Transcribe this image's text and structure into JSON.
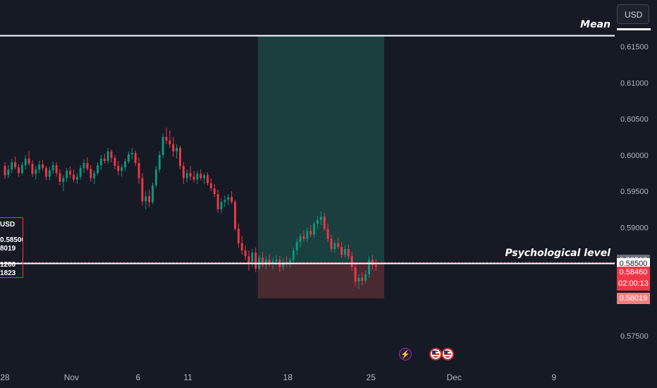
{
  "toolbar": {
    "currency": "USD"
  },
  "chart_data": {
    "type": "candlestick",
    "y_range": [
      0.5725,
      0.6175
    ],
    "y_ticks": [
      "0.61500",
      "0.61000",
      "0.60500",
      "0.60000",
      "0.59500",
      "0.59000",
      "0.58500",
      "0.58000",
      "0.57500"
    ],
    "x_ticks": [
      {
        "label": "28",
        "index": 0
      },
      {
        "label": "Nov",
        "index": 4
      },
      {
        "label": "6",
        "index": 8
      },
      {
        "label": "11",
        "index": 11
      },
      {
        "label": "18",
        "index": 17
      },
      {
        "label": "25",
        "index": 22
      },
      {
        "label": "Dec",
        "index": 27
      },
      {
        "label": "9",
        "index": 33
      }
    ],
    "candles_first_index": 0,
    "candles_last_index": 22.3,
    "candles": [
      [
        0.5985,
        0.599,
        0.5967,
        0.5972
      ],
      [
        0.5972,
        0.5986,
        0.5968,
        0.598
      ],
      [
        0.598,
        0.5995,
        0.5975,
        0.599
      ],
      [
        0.599,
        0.5998,
        0.598,
        0.5983
      ],
      [
        0.5983,
        0.5987,
        0.597,
        0.5975
      ],
      [
        0.5975,
        0.599,
        0.5972,
        0.5986
      ],
      [
        0.5986,
        0.6,
        0.598,
        0.5995
      ],
      [
        0.5995,
        0.6005,
        0.5985,
        0.5988
      ],
      [
        0.5988,
        0.5993,
        0.597,
        0.5974
      ],
      [
        0.5974,
        0.5985,
        0.5966,
        0.598
      ],
      [
        0.598,
        0.5992,
        0.5975,
        0.5987
      ],
      [
        0.5987,
        0.5993,
        0.5978,
        0.5982
      ],
      [
        0.5982,
        0.5985,
        0.5965,
        0.597
      ],
      [
        0.597,
        0.5984,
        0.5965,
        0.5979
      ],
      [
        0.5979,
        0.5991,
        0.5974,
        0.5986
      ],
      [
        0.5986,
        0.599,
        0.597,
        0.5975
      ],
      [
        0.5975,
        0.598,
        0.5958,
        0.5963
      ],
      [
        0.5963,
        0.5972,
        0.595,
        0.5968
      ],
      [
        0.5968,
        0.5982,
        0.5963,
        0.5978
      ],
      [
        0.5978,
        0.5984,
        0.5968,
        0.5973
      ],
      [
        0.5973,
        0.598,
        0.5962,
        0.5966
      ],
      [
        0.5966,
        0.5975,
        0.596,
        0.597
      ],
      [
        0.597,
        0.5986,
        0.5966,
        0.5982
      ],
      [
        0.5982,
        0.5994,
        0.5975,
        0.5989
      ],
      [
        0.5989,
        0.5997,
        0.5978,
        0.5981
      ],
      [
        0.5981,
        0.5986,
        0.5963,
        0.5968
      ],
      [
        0.5968,
        0.5979,
        0.596,
        0.5975
      ],
      [
        0.5975,
        0.599,
        0.5972,
        0.5986
      ],
      [
        0.5986,
        0.6,
        0.598,
        0.5995
      ],
      [
        0.5995,
        0.6002,
        0.5988,
        0.5992
      ],
      [
        0.5992,
        0.601,
        0.5988,
        0.6005
      ],
      [
        0.6005,
        0.6008,
        0.599,
        0.5996
      ],
      [
        0.5996,
        0.6,
        0.598,
        0.5985
      ],
      [
        0.5985,
        0.5992,
        0.5972,
        0.5978
      ],
      [
        0.5978,
        0.5987,
        0.597,
        0.5983
      ],
      [
        0.5983,
        0.5995,
        0.5978,
        0.5991
      ],
      [
        0.5991,
        0.6005,
        0.5988,
        0.6001
      ],
      [
        0.6001,
        0.601,
        0.5994,
        0.6003
      ],
      [
        0.6003,
        0.6006,
        0.5985,
        0.5989
      ],
      [
        0.5989,
        0.5996,
        0.596,
        0.5968
      ],
      [
        0.5968,
        0.5975,
        0.593,
        0.5936
      ],
      [
        0.5936,
        0.595,
        0.5925,
        0.5943
      ],
      [
        0.5943,
        0.5952,
        0.5928,
        0.5935
      ],
      [
        0.5935,
        0.5962,
        0.5932,
        0.5958
      ],
      [
        0.5958,
        0.5985,
        0.5955,
        0.598
      ],
      [
        0.598,
        0.6005,
        0.5976,
        0.6
      ],
      [
        0.6,
        0.603,
        0.5996,
        0.6025
      ],
      [
        0.6025,
        0.6038,
        0.6015,
        0.602
      ],
      [
        0.602,
        0.6034,
        0.601,
        0.6015
      ],
      [
        0.6015,
        0.6025,
        0.5998,
        0.6005
      ],
      [
        0.6005,
        0.6015,
        0.5995,
        0.601
      ],
      [
        0.601,
        0.6013,
        0.598,
        0.5985
      ],
      [
        0.5985,
        0.599,
        0.596,
        0.5968
      ],
      [
        0.5968,
        0.598,
        0.5962,
        0.5975
      ],
      [
        0.5975,
        0.5985,
        0.5965,
        0.597
      ],
      [
        0.597,
        0.5978,
        0.5962,
        0.5966
      ],
      [
        0.5966,
        0.5978,
        0.596,
        0.5974
      ],
      [
        0.5974,
        0.598,
        0.5965,
        0.5968
      ],
      [
        0.5968,
        0.5975,
        0.596,
        0.5972
      ],
      [
        0.5972,
        0.5976,
        0.5958,
        0.5961
      ],
      [
        0.5961,
        0.5968,
        0.595,
        0.5954
      ],
      [
        0.5954,
        0.596,
        0.5942,
        0.5946
      ],
      [
        0.5946,
        0.5952,
        0.592,
        0.5925
      ],
      [
        0.5925,
        0.594,
        0.592,
        0.5935
      ],
      [
        0.5935,
        0.5944,
        0.5928,
        0.5938
      ],
      [
        0.5938,
        0.5946,
        0.593,
        0.5942
      ],
      [
        0.5942,
        0.595,
        0.5932,
        0.5935
      ],
      [
        0.5935,
        0.5938,
        0.5895,
        0.5898
      ],
      [
        0.5898,
        0.5905,
        0.5872,
        0.5878
      ],
      [
        0.5878,
        0.5888,
        0.5862,
        0.5868
      ],
      [
        0.5868,
        0.5875,
        0.5855,
        0.586
      ],
      [
        0.586,
        0.5868,
        0.584,
        0.585
      ],
      [
        0.585,
        0.587,
        0.5845,
        0.5865
      ],
      [
        0.5865,
        0.5872,
        0.5838,
        0.5843
      ],
      [
        0.5843,
        0.5862,
        0.584,
        0.5858
      ],
      [
        0.5858,
        0.5866,
        0.5845,
        0.5848
      ],
      [
        0.5848,
        0.586,
        0.5842,
        0.5855
      ],
      [
        0.5855,
        0.5863,
        0.5846,
        0.585
      ],
      [
        0.585,
        0.5858,
        0.5842,
        0.5853
      ],
      [
        0.5853,
        0.5862,
        0.5848,
        0.5855
      ],
      [
        0.5855,
        0.586,
        0.5838,
        0.5845
      ],
      [
        0.5845,
        0.5858,
        0.584,
        0.5852
      ],
      [
        0.5852,
        0.586,
        0.5845,
        0.585
      ],
      [
        0.585,
        0.5858,
        0.5844,
        0.5855
      ],
      [
        0.5855,
        0.5872,
        0.585,
        0.5868
      ],
      [
        0.5868,
        0.5885,
        0.5862,
        0.588
      ],
      [
        0.588,
        0.5892,
        0.5872,
        0.5888
      ],
      [
        0.5888,
        0.5896,
        0.588,
        0.5884
      ],
      [
        0.5884,
        0.59,
        0.588,
        0.5895
      ],
      [
        0.5895,
        0.5903,
        0.5886,
        0.589
      ],
      [
        0.589,
        0.5908,
        0.5885,
        0.5905
      ],
      [
        0.5905,
        0.5916,
        0.5898,
        0.591
      ],
      [
        0.591,
        0.5922,
        0.5903,
        0.5915
      ],
      [
        0.5915,
        0.592,
        0.5895,
        0.5898
      ],
      [
        0.5898,
        0.5905,
        0.588,
        0.5884
      ],
      [
        0.5884,
        0.589,
        0.5866,
        0.587
      ],
      [
        0.587,
        0.5882,
        0.5865,
        0.5878
      ],
      [
        0.5878,
        0.5886,
        0.587,
        0.5873
      ],
      [
        0.5873,
        0.588,
        0.5858,
        0.5862
      ],
      [
        0.5862,
        0.5875,
        0.5858,
        0.587
      ],
      [
        0.587,
        0.5876,
        0.5856,
        0.586
      ],
      [
        0.586,
        0.5866,
        0.584,
        0.5845
      ],
      [
        0.5845,
        0.585,
        0.5818,
        0.5825
      ],
      [
        0.5825,
        0.5835,
        0.5815,
        0.583
      ],
      [
        0.583,
        0.5838,
        0.582,
        0.5826
      ],
      [
        0.5826,
        0.584,
        0.5822,
        0.5835
      ],
      [
        0.5835,
        0.586,
        0.583,
        0.5855
      ],
      [
        0.5855,
        0.5862,
        0.5842,
        0.5848
      ],
      [
        0.5848,
        0.5856,
        0.584,
        0.5846
      ]
    ],
    "horizontal_lines": [
      {
        "name": "Mean",
        "price": 0.6165
      },
      {
        "name": "Psychological level",
        "price": 0.585
      }
    ],
    "position": {
      "start_index": 15.2,
      "end_index": 22.8,
      "entry": 0.58512,
      "target": 0.6165,
      "stop": 0.58019
    },
    "price_tags": {
      "entry": "0.58512",
      "level": "0.58500",
      "current": "0.58460",
      "countdown": "02:00:13",
      "stop": "0.58019"
    },
    "position_info": {
      "currency": "USD",
      "price": "0.58500",
      "stop_fragment": "8019",
      "fragment_a": "1200",
      "fragment_b": "1823"
    },
    "events": [
      {
        "type": "lightning-icon"
      },
      {
        "type": "us-flag-icon"
      },
      {
        "type": "us-flag-icon"
      }
    ],
    "colors": {
      "background": "#161a25",
      "up": "#089981",
      "down": "#f23645",
      "target_zone": "#1a3f3e",
      "stop_zone": "#4a2a31",
      "line": "#ffffff",
      "axis_text": "#b2b5be"
    }
  }
}
